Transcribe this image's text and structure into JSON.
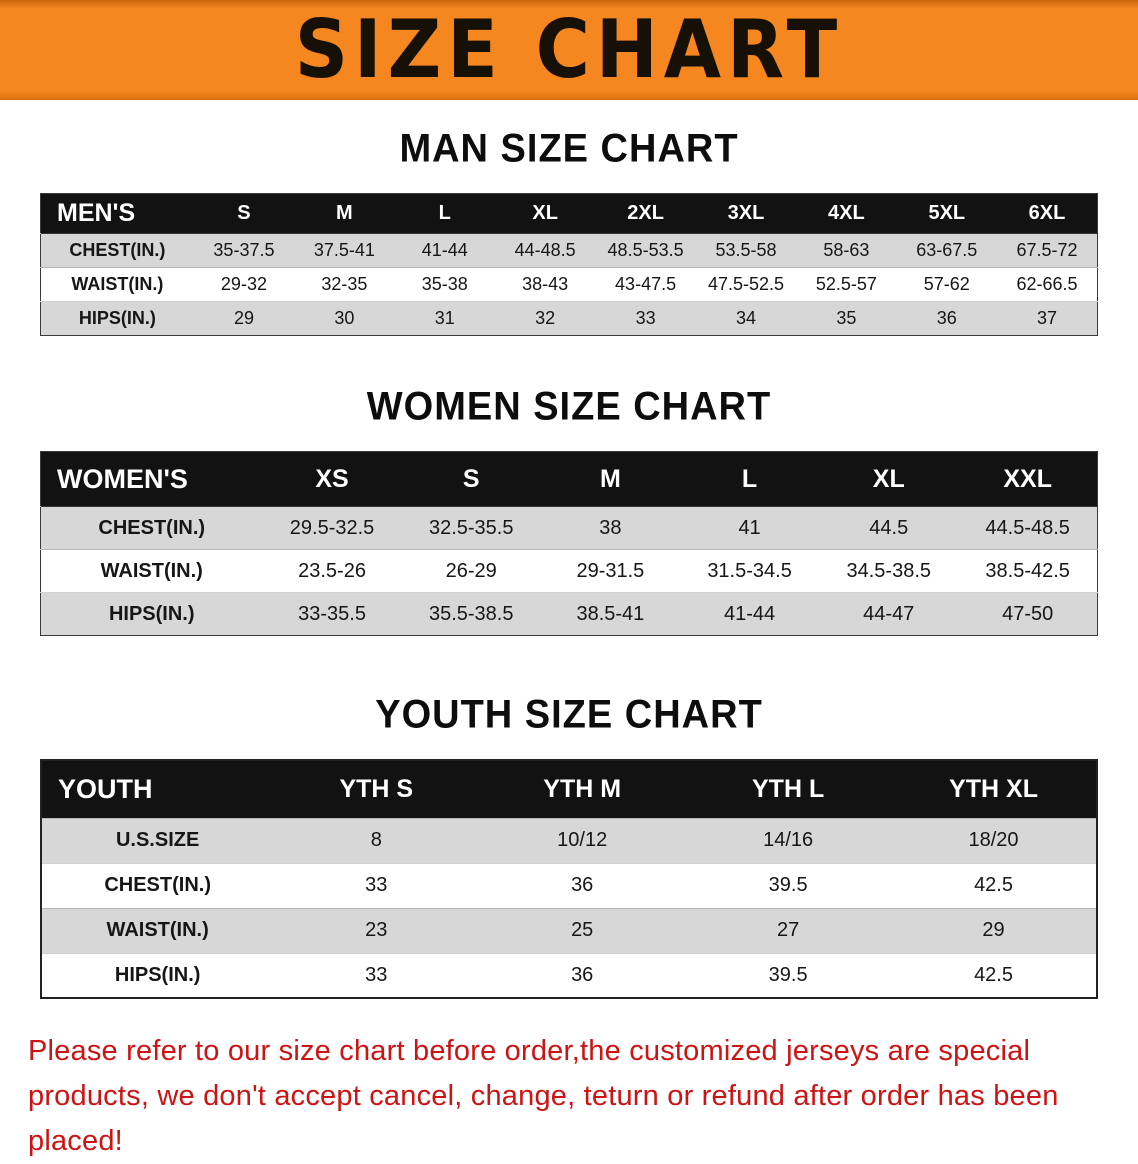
{
  "banner": {
    "title": "SIZE CHART"
  },
  "sections": [
    {
      "heading": "MAN SIZE CHART",
      "table": {
        "header": [
          "MEN'S",
          "S",
          "M",
          "L",
          "XL",
          "2XL",
          "3XL",
          "4XL",
          "5XL",
          "6XL"
        ],
        "rows": [
          [
            "CHEST(IN.)",
            "35-37.5",
            "37.5-41",
            "41-44",
            "44-48.5",
            "48.5-53.5",
            "53.5-58",
            "58-63",
            "63-67.5",
            "67.5-72"
          ],
          [
            "WAIST(IN.)",
            "29-32",
            "32-35",
            "35-38",
            "38-43",
            "43-47.5",
            "47.5-52.5",
            "52.5-57",
            "57-62",
            "62-66.5"
          ],
          [
            "HIPS(IN.)",
            "29",
            "30",
            "31",
            "32",
            "33",
            "34",
            "35",
            "36",
            "37"
          ]
        ]
      }
    },
    {
      "heading": "WOMEN SIZE CHART",
      "table": {
        "header": [
          "WOMEN'S",
          "XS",
          "S",
          "M",
          "L",
          "XL",
          "XXL"
        ],
        "rows": [
          [
            "CHEST(IN.)",
            "29.5-32.5",
            "32.5-35.5",
            "38",
            "41",
            "44.5",
            "44.5-48.5"
          ],
          [
            "WAIST(IN.)",
            "23.5-26",
            "26-29",
            "29-31.5",
            "31.5-34.5",
            "34.5-38.5",
            "38.5-42.5"
          ],
          [
            "HIPS(IN.)",
            "33-35.5",
            "35.5-38.5",
            "38.5-41",
            "41-44",
            "44-47",
            "47-50"
          ]
        ]
      }
    },
    {
      "heading": "YOUTH SIZE CHART",
      "table": {
        "header": [
          "YOUTH",
          "YTH S",
          "YTH M",
          "YTH L",
          "YTH XL"
        ],
        "rows": [
          [
            "U.S.SIZE",
            "8",
            "10/12",
            "14/16",
            "18/20"
          ],
          [
            "CHEST(IN.)",
            "33",
            "36",
            "39.5",
            "42.5"
          ],
          [
            "WAIST(IN.)",
            "23",
            "25",
            "27",
            "29"
          ],
          [
            "HIPS(IN.)",
            "33",
            "36",
            "39.5",
            "42.5"
          ]
        ]
      }
    }
  ],
  "footer": {
    "lines": [
      "Please refer to our size chart before order,the customized jerseys are special products,",
      "we don't accept cancel, change, teturn or refund after order has been placed!"
    ]
  },
  "colors": {
    "banner_orange": "#f6861f",
    "title_black": "#171006",
    "header_black": "#121212",
    "stripe_gray": "#d7d7d7",
    "footer_red": "#cc1414"
  }
}
